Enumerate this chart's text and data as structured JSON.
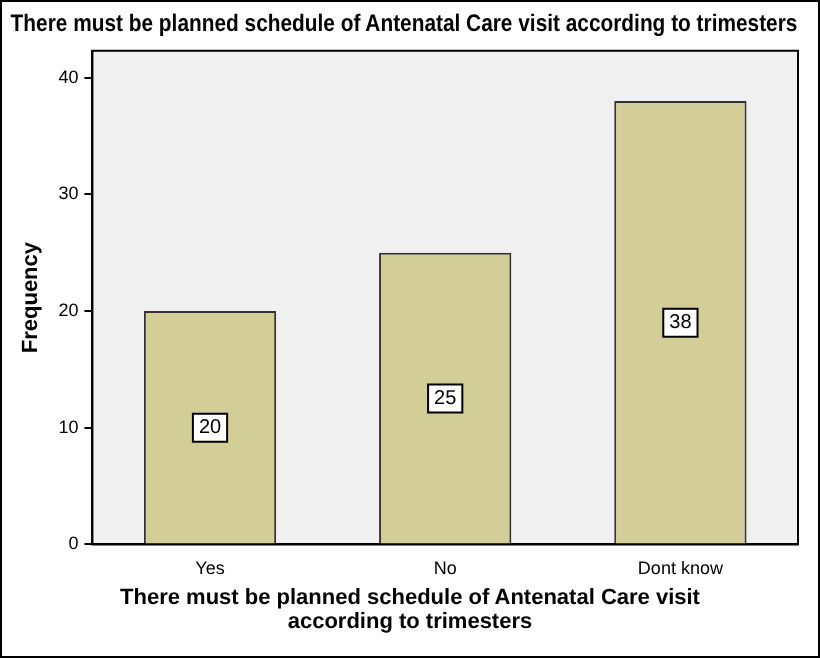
{
  "chart_data": {
    "type": "bar",
    "title": "There must be planned schedule of Antenatal Care visit according to trimesters",
    "xlabel": "There must be planned schedule of Antenatal Care visit according to trimesters",
    "ylabel": "Frequency",
    "categories": [
      "Yes",
      "No",
      "Dont know"
    ],
    "values": [
      20,
      25,
      38
    ],
    "color": "#d3ce97",
    "ylim": [
      0,
      42.3
    ],
    "yticks": [
      0,
      10,
      20,
      30,
      40
    ],
    "grid": false,
    "data_labels": true
  }
}
